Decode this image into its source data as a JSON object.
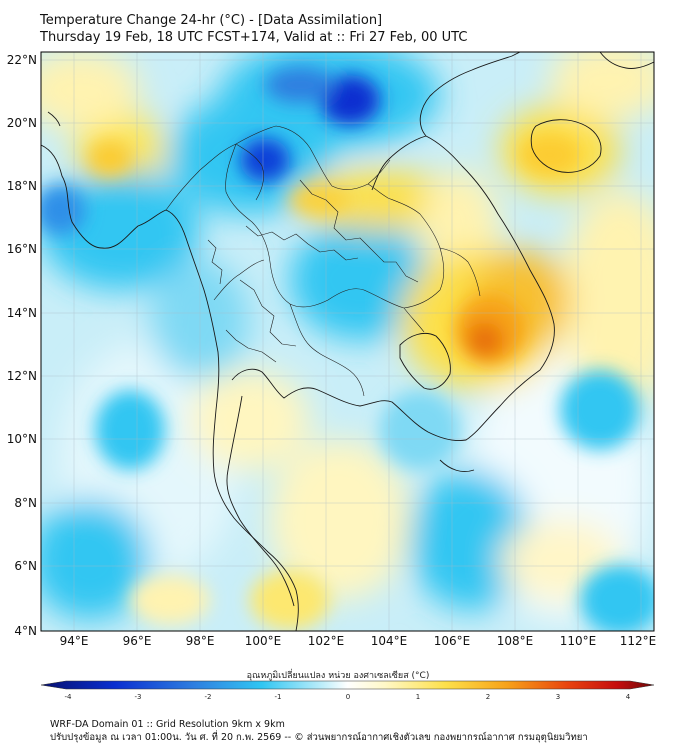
{
  "title": {
    "line1": "Temperature Change 24-hr (°C) - [Data Assimilation]",
    "line2": "Thursday 19 Feb, 18 UTC FCST+174, Valid at :: Fri 27 Feb, 00 UTC"
  },
  "map": {
    "lat_labels": [
      "22°N",
      "20°N",
      "18°N",
      "16°N",
      "14°N",
      "12°N",
      "10°N",
      "8°N",
      "6°N",
      "4°N"
    ],
    "lon_labels": [
      "94°E",
      "96°E",
      "98°E",
      "100°E",
      "102°E",
      "104°E",
      "106°E",
      "108°E",
      "110°E",
      "112°E"
    ],
    "colors": {
      "deep_blue": "#0a2fd0",
      "blue": "#2f7fe0",
      "cyan": "#31c6f2",
      "light_cyan": "#9fe4f7",
      "white": "#f4fbff",
      "pale_yellow": "#fff5b8",
      "yellow": "#fde04a",
      "orange": "#f7a219",
      "dark_orange": "#e8710f"
    }
  },
  "colorbar": {
    "label": "อุณหภูมิเปลี่ยนแปลง หน่วย องศาเซลเซียส (°C)",
    "ticks": [
      "-4",
      "-3",
      "-2",
      "-1",
      "0",
      "1",
      "2",
      "3",
      "4"
    ]
  },
  "footer": {
    "line1": "WRF-DA Domain 01 :: Grid Resolution 9km x 9km",
    "line2": "ปรับปรุงข้อมูล ณ เวลา 01:00น. วัน ศ. ที่ 20 ก.พ. 2569 -- © ส่วนพยากรณ์อากาศเชิงตัวเลข กองพยากรณ์อากาศ กรมอุตุนิยมวิทยา"
  }
}
